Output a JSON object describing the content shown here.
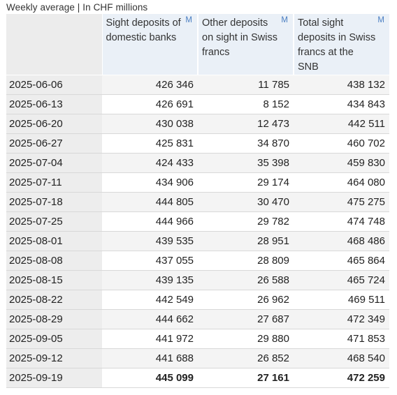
{
  "caption": "Weekly average | In CHF millions",
  "columns": [
    {
      "label": "Sight deposits of domestic banks",
      "badge": "M"
    },
    {
      "label": "Other deposits on sight in Swiss francs",
      "badge": "M"
    },
    {
      "label": "Total sight deposits in Swiss francs at the SNB",
      "badge": "M"
    }
  ],
  "rows": [
    {
      "date": "2025-06-06",
      "v1": "426 346",
      "v2": "11 785",
      "v3": "438 132"
    },
    {
      "date": "2025-06-13",
      "v1": "426 691",
      "v2": "8 152",
      "v3": "434 843"
    },
    {
      "date": "2025-06-20",
      "v1": "430 038",
      "v2": "12 473",
      "v3": "442 511"
    },
    {
      "date": "2025-06-27",
      "v1": "425 831",
      "v2": "34 870",
      "v3": "460 702"
    },
    {
      "date": "2025-07-04",
      "v1": "424 433",
      "v2": "35 398",
      "v3": "459 830"
    },
    {
      "date": "2025-07-11",
      "v1": "434 906",
      "v2": "29 174",
      "v3": "464 080"
    },
    {
      "date": "2025-07-18",
      "v1": "444 805",
      "v2": "30 470",
      "v3": "475 275"
    },
    {
      "date": "2025-07-25",
      "v1": "444 966",
      "v2": "29 782",
      "v3": "474 748"
    },
    {
      "date": "2025-08-01",
      "v1": "439 535",
      "v2": "28 951",
      "v3": "468 486"
    },
    {
      "date": "2025-08-08",
      "v1": "437 055",
      "v2": "28 809",
      "v3": "465 864"
    },
    {
      "date": "2025-08-15",
      "v1": "439 135",
      "v2": "26 588",
      "v3": "465 724"
    },
    {
      "date": "2025-08-22",
      "v1": "442 549",
      "v2": "26 962",
      "v3": "469 511"
    },
    {
      "date": "2025-08-29",
      "v1": "444 662",
      "v2": "27 687",
      "v3": "472 349"
    },
    {
      "date": "2025-09-05",
      "v1": "441 972",
      "v2": "29 880",
      "v3": "471 853"
    },
    {
      "date": "2025-09-12",
      "v1": "441 688",
      "v2": "26 852",
      "v3": "468 540"
    },
    {
      "date": "2025-09-19",
      "v1": "445 099",
      "v2": "27 161",
      "v3": "472 259"
    }
  ]
}
